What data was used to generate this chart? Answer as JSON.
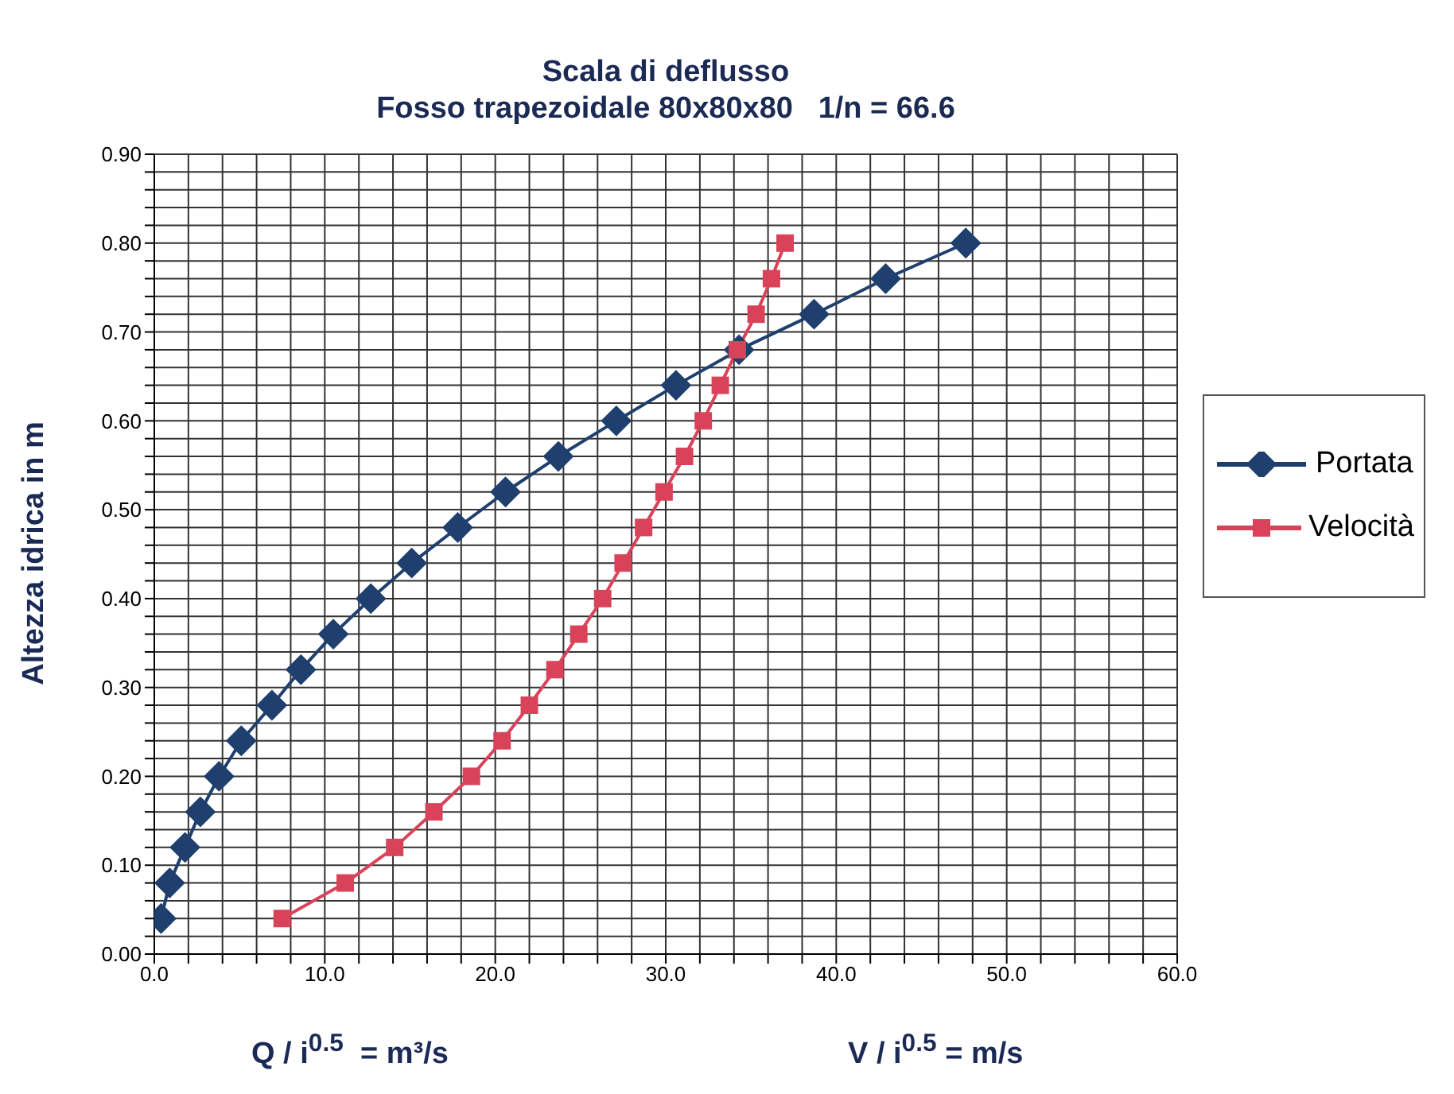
{
  "chart_data": {
    "type": "line",
    "title": "Scala di deflusso",
    "subtitle": "Fosso trapezoidale 80x80x80   1/n = 66.6",
    "xlabel": "Q / i$^{0.5}$  = m³/s",
    "ylabel": "Altezza idrica in m",
    "annotations": [
      "V / i$^{0.5}$ = m/s"
    ],
    "series": [
      {
        "name": "Portata",
        "color": "#1f3f6e",
        "marker": "diamond",
        "x": [
          0.4,
          0.9,
          1.8,
          2.7,
          3.8,
          5.1,
          6.9,
          8.6,
          10.5,
          12.7,
          15.1,
          17.8,
          20.6,
          23.7,
          27.1,
          30.6,
          34.3,
          38.7,
          42.9,
          47.6
        ],
        "values": [
          0.04,
          0.08,
          0.12,
          0.16,
          0.2,
          0.24,
          0.28,
          0.32,
          0.36,
          0.4,
          0.44,
          0.48,
          0.52,
          0.56,
          0.6,
          0.64,
          0.68,
          0.72,
          0.76,
          0.8
        ]
      },
      {
        "name": "Velocità",
        "color": "#d9435a",
        "marker": "square",
        "x": [
          7.5,
          11.2,
          14.1,
          16.4,
          18.6,
          20.4,
          22.0,
          23.5,
          24.9,
          26.3,
          27.5,
          28.7,
          29.9,
          31.1,
          32.2,
          33.2,
          34.2,
          35.3,
          36.2,
          37.0
        ],
        "values": [
          0.04,
          0.08,
          0.12,
          0.16,
          0.2,
          0.24,
          0.28,
          0.32,
          0.36,
          0.4,
          0.44,
          0.48,
          0.52,
          0.56,
          0.6,
          0.64,
          0.68,
          0.72,
          0.76,
          0.8
        ]
      }
    ],
    "xlim": [
      0,
      60
    ],
    "xticks": [
      {
        "value": 0,
        "label": "0.0"
      },
      {
        "value": 2,
        "label": null
      },
      {
        "value": 4,
        "label": null
      },
      {
        "value": 6,
        "label": null
      },
      {
        "value": 8,
        "label": null
      },
      {
        "value": 10,
        "label": "10.0"
      },
      {
        "value": 12,
        "label": null
      },
      {
        "value": 14,
        "label": null
      },
      {
        "value": 16,
        "label": null
      },
      {
        "value": 18,
        "label": null
      },
      {
        "value": 20,
        "label": "20.0"
      },
      {
        "value": 22,
        "label": null
      },
      {
        "value": 24,
        "label": null
      },
      {
        "value": 26,
        "label": null
      },
      {
        "value": 28,
        "label": null
      },
      {
        "value": 30,
        "label": "30.0"
      },
      {
        "value": 32,
        "label": null
      },
      {
        "value": 34,
        "label": null
      },
      {
        "value": 36,
        "label": null
      },
      {
        "value": 38,
        "label": null
      },
      {
        "value": 40,
        "label": "40.0"
      },
      {
        "value": 42,
        "label": null
      },
      {
        "value": 44,
        "label": null
      },
      {
        "value": 46,
        "label": null
      },
      {
        "value": 48,
        "label": null
      },
      {
        "value": 50,
        "label": "50.0"
      },
      {
        "value": 52,
        "label": null
      },
      {
        "value": 54,
        "label": null
      },
      {
        "value": 56,
        "label": null
      },
      {
        "value": 58,
        "label": null
      },
      {
        "value": 60,
        "label": "60.0"
      }
    ],
    "ylim": [
      0,
      0.9
    ],
    "yticks": [
      {
        "value": 0,
        "label": "0.00"
      },
      {
        "value": 0.02,
        "label": null
      },
      {
        "value": 0.04,
        "label": null
      },
      {
        "value": 0.06,
        "label": null
      },
      {
        "value": 0.08,
        "label": null
      },
      {
        "value": 0.1,
        "label": "0.10"
      },
      {
        "value": 0.12,
        "label": null
      },
      {
        "value": 0.14,
        "label": null
      },
      {
        "value": 0.16,
        "label": null
      },
      {
        "value": 0.18,
        "label": null
      },
      {
        "value": 0.2,
        "label": "0.20"
      },
      {
        "value": 0.22,
        "label": null
      },
      {
        "value": 0.24,
        "label": null
      },
      {
        "value": 0.26,
        "label": null
      },
      {
        "value": 0.28,
        "label": null
      },
      {
        "value": 0.3,
        "label": "0.30"
      },
      {
        "value": 0.32,
        "label": null
      },
      {
        "value": 0.34,
        "label": null
      },
      {
        "value": 0.36,
        "label": null
      },
      {
        "value": 0.38,
        "label": null
      },
      {
        "value": 0.4,
        "label": "0.40"
      },
      {
        "value": 0.42,
        "label": null
      },
      {
        "value": 0.44,
        "label": null
      },
      {
        "value": 0.46,
        "label": null
      },
      {
        "value": 0.48,
        "label": null
      },
      {
        "value": 0.5,
        "label": "0.50"
      },
      {
        "value": 0.52,
        "label": null
      },
      {
        "value": 0.54,
        "label": null
      },
      {
        "value": 0.56,
        "label": null
      },
      {
        "value": 0.58,
        "label": null
      },
      {
        "value": 0.6,
        "label": "0.60"
      },
      {
        "value": 0.62,
        "label": null
      },
      {
        "value": 0.64,
        "label": null
      },
      {
        "value": 0.66,
        "label": null
      },
      {
        "value": 0.68,
        "label": null
      },
      {
        "value": 0.7,
        "label": "0.70"
      },
      {
        "value": 0.72,
        "label": null
      },
      {
        "value": 0.74,
        "label": null
      },
      {
        "value": 0.76,
        "label": null
      },
      {
        "value": 0.78,
        "label": null
      },
      {
        "value": 0.8,
        "label": "0.80"
      },
      {
        "value": 0.82,
        "label": null
      },
      {
        "value": 0.84,
        "label": null
      },
      {
        "value": 0.86,
        "label": null
      },
      {
        "value": 0.88,
        "label": null
      },
      {
        "value": 0.9,
        "label": "0.90"
      }
    ],
    "grid": true,
    "legend": "right",
    "line_style": "solid"
  }
}
